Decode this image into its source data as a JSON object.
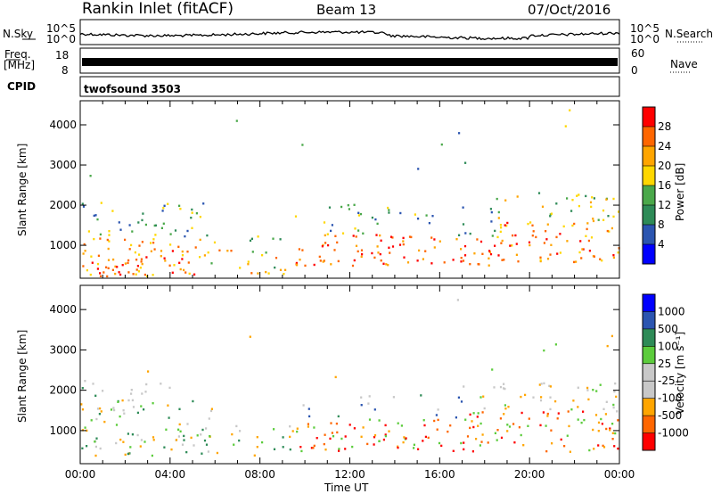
{
  "header": {
    "station": "Rankin Inlet (fitACF)",
    "beam": "Beam 13",
    "date": "07/Oct/2016"
  },
  "nsky_panel": {
    "left_label": "N.Sky",
    "right_label": "N.Search",
    "left_ticks": [
      "10^5",
      "10^0"
    ],
    "right_ticks": [
      "10^5",
      "10^0"
    ]
  },
  "freq_panel": {
    "left_label_1": "Freq.",
    "left_label_2": "[MHz]",
    "left_ticks": [
      "18",
      "8"
    ],
    "right_label": "Nave",
    "right_ticks": [
      "60",
      "0"
    ]
  },
  "cpid": {
    "label": "CPID",
    "value": "twofsound 3503"
  },
  "colors": {
    "power_scale": [
      "#0000ff",
      "#2b55b0",
      "#2e8b57",
      "#4aa84a",
      "#ffd700",
      "#ffa500",
      "#ff6600",
      "#ff0000"
    ],
    "velocity_scale": [
      "#ff0000",
      "#ff6600",
      "#ffa500",
      "#c8c8c8",
      "#c8c8c8",
      "#5ccc3c",
      "#2e8b57",
      "#2b55b0",
      "#0000ff"
    ]
  },
  "chart_data": [
    {
      "type": "heatmap",
      "name_panel": "power",
      "ylabel": "Slant Range [km]",
      "yticks": [
        1000,
        2000,
        3000,
        4000
      ],
      "ylim": [
        180,
        4600
      ],
      "xlim": [
        0,
        24
      ],
      "colorbar_label": "Power [dB]",
      "colorbar_ticks": [
        "4",
        "8",
        "12",
        "16",
        "20",
        "24",
        "28"
      ],
      "colorbar_range": [
        0,
        32
      ]
    },
    {
      "type": "heatmap",
      "name_panel": "velocity",
      "ylabel": "Slant Range [km]",
      "yticks": [
        1000,
        2000,
        3000,
        4000
      ],
      "ylim": [
        180,
        4600
      ],
      "xlim": [
        0,
        24
      ],
      "xlabel": "Time UT",
      "xticks": [
        "00:00",
        "04:00",
        "08:00",
        "12:00",
        "16:00",
        "20:00",
        "00:00"
      ],
      "colorbar_label": "Velocity [m s⁻¹]",
      "colorbar_ticks": [
        "-1000",
        "-500",
        "-100",
        "-25",
        "25",
        "100",
        "500",
        "1000"
      ]
    }
  ]
}
